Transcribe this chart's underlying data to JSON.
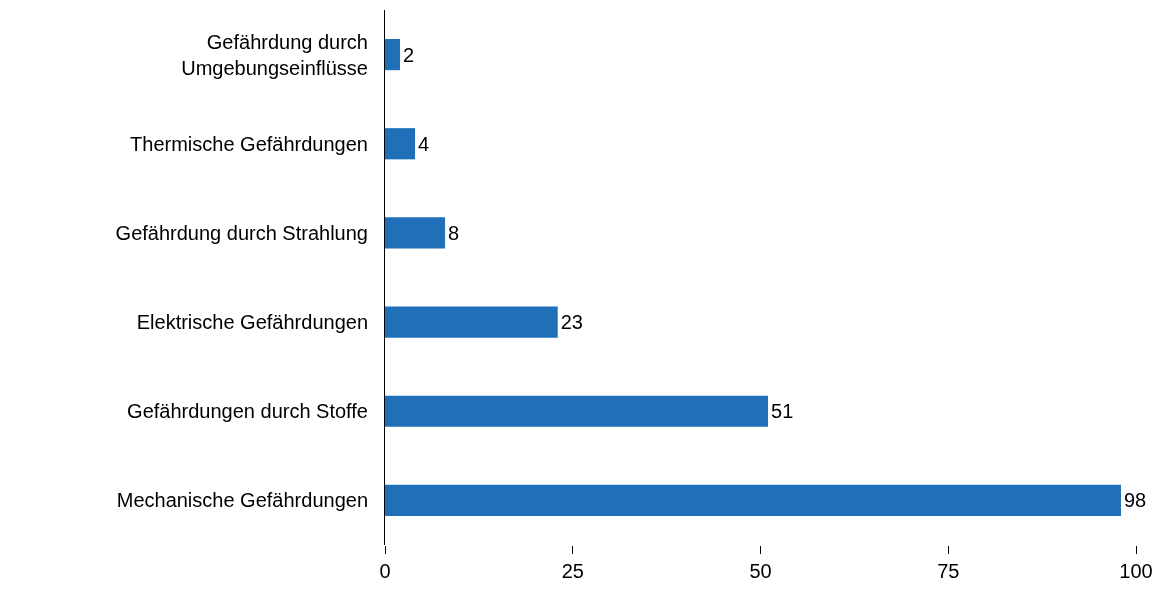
{
  "chart_data": {
    "type": "bar",
    "orientation": "horizontal",
    "categories": [
      "Gefährdung durch Umgebungseinflüsse",
      "Thermische Gefährdungen",
      "Gefährdung durch Strahlung",
      "Elektrische Gefährdungen",
      "Gefährdungen durch Stoffe",
      "Mechanische Gefährdungen"
    ],
    "values": [
      2,
      4,
      8,
      23,
      51,
      98
    ],
    "color": "#1f70b9",
    "xlim": [
      0,
      100
    ],
    "xticks": [
      0,
      25,
      50,
      75,
      100
    ],
    "data_labels": true
  }
}
